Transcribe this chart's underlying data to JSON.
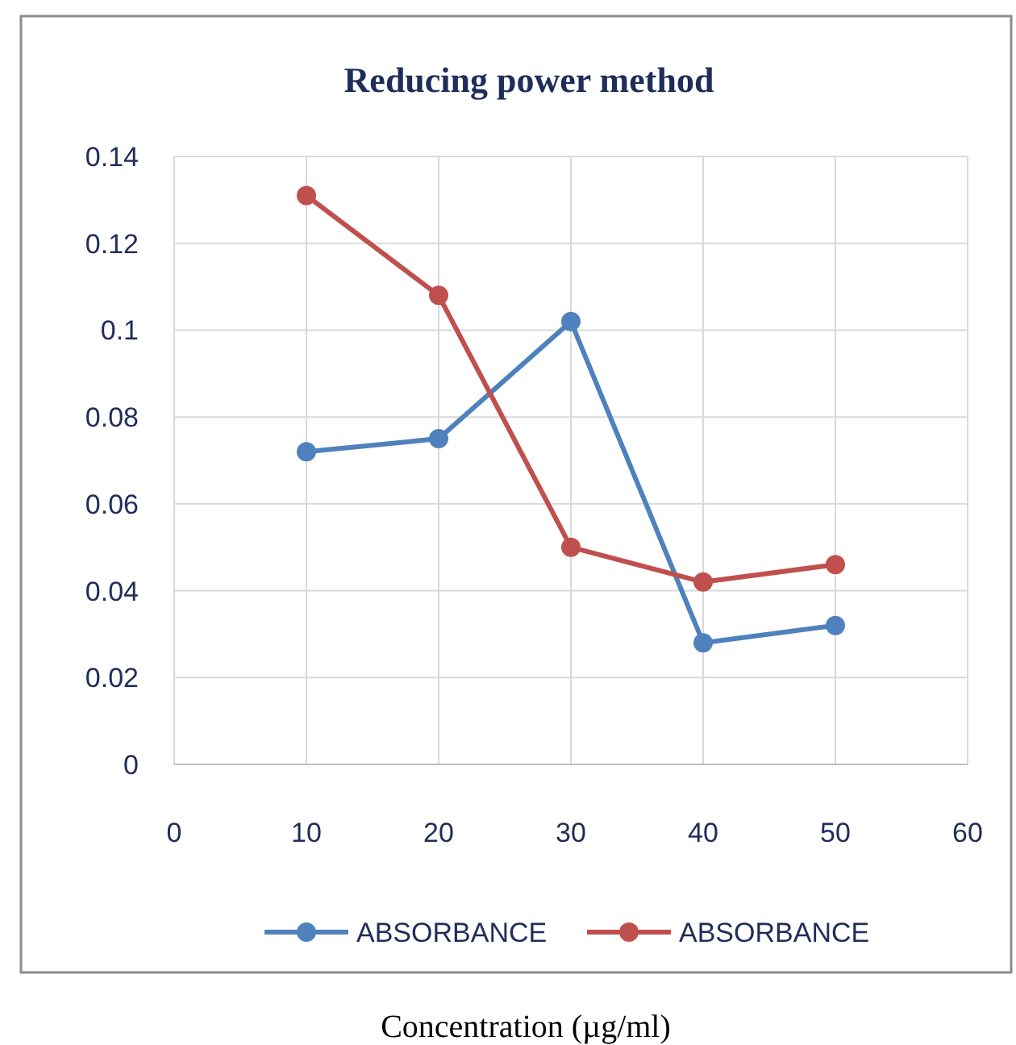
{
  "chart_data": {
    "type": "line",
    "title": "Reducing power method",
    "xlabel": "Concentration (µg/ml)",
    "x": [
      10,
      20,
      30,
      40,
      50
    ],
    "series": [
      {
        "name": "ABSORBANCE",
        "color": "#4f81bd",
        "values": [
          0.072,
          0.075,
          0.102,
          0.028,
          0.032
        ]
      },
      {
        "name": "ABSORBANCE",
        "color": "#c0504d",
        "values": [
          0.131,
          0.108,
          0.05,
          0.042,
          0.046
        ]
      }
    ],
    "xlim": [
      0,
      60
    ],
    "xticks": [
      0,
      10,
      20,
      30,
      40,
      50,
      60
    ],
    "ylim": [
      0,
      0.14
    ],
    "yticks": [
      0,
      0.02,
      0.04,
      0.06,
      0.08,
      0.1,
      0.12,
      0.14
    ],
    "grid": true,
    "legend": "bottom",
    "marker": "circle",
    "line_style": "solid"
  }
}
